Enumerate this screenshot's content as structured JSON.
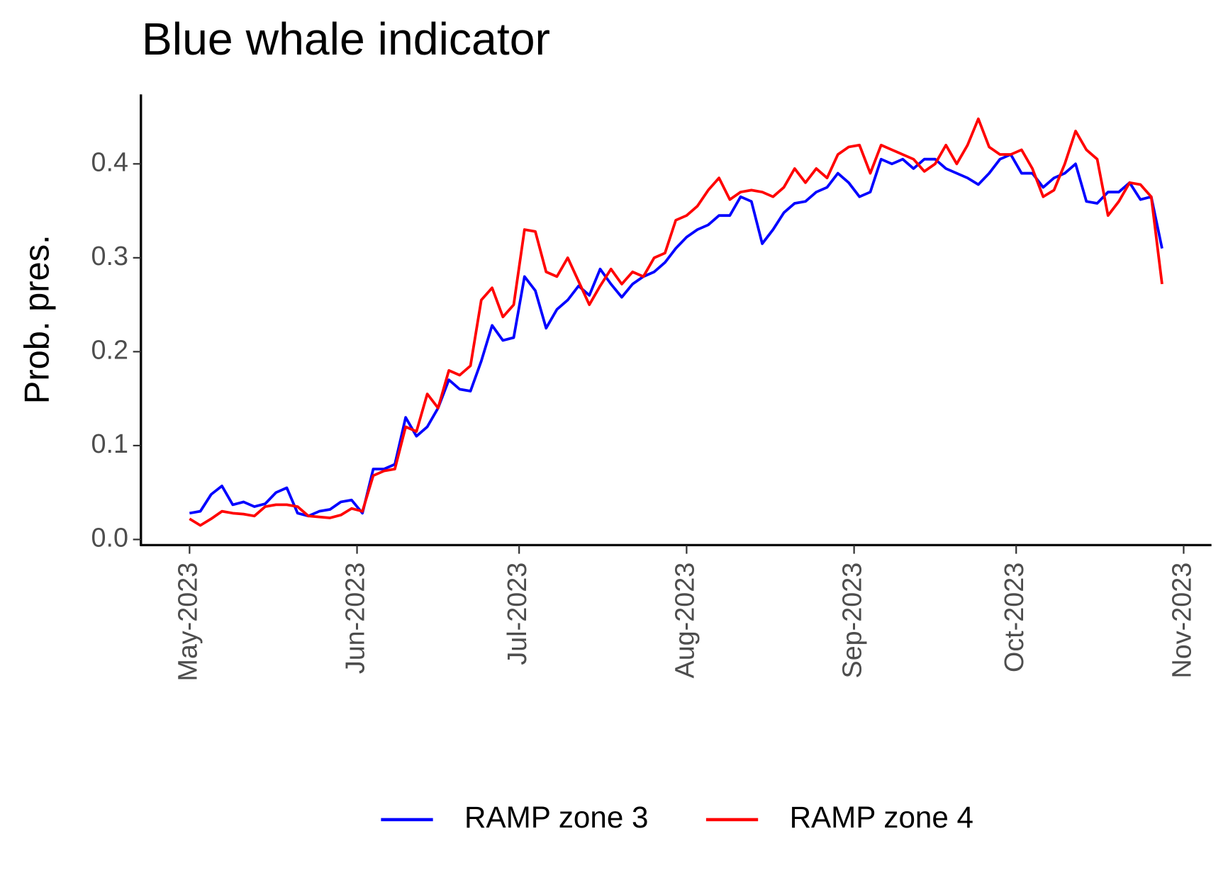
{
  "chart_data": {
    "type": "line",
    "title": "Blue whale indicator",
    "y_label": "Prob. pres.",
    "x": [
      0,
      2,
      4,
      6,
      8,
      10,
      12,
      14,
      16,
      18,
      20,
      22,
      24,
      26,
      28,
      30,
      32,
      34,
      36,
      38,
      40,
      42,
      44,
      46,
      48,
      50,
      52,
      54,
      56,
      58,
      60,
      62,
      64,
      66,
      68,
      70,
      72,
      74,
      76,
      78,
      80,
      82,
      84,
      86,
      88,
      90,
      92,
      94,
      96,
      98,
      100,
      102,
      104,
      106,
      108,
      110,
      112,
      114,
      116,
      118,
      120,
      122,
      124,
      126,
      128,
      130,
      132,
      134,
      136,
      138,
      140,
      142,
      144,
      146,
      148,
      150,
      152,
      154,
      156,
      158,
      160,
      162,
      164,
      166,
      168,
      170,
      172,
      174,
      176,
      178,
      180
    ],
    "xlim": [
      -9,
      189
    ],
    "xticks": [
      {
        "value": 0,
        "label": "May-2023"
      },
      {
        "value": 31,
        "label": "Jun-2023"
      },
      {
        "value": 61,
        "label": "Jul-2023"
      },
      {
        "value": 92,
        "label": "Aug-2023"
      },
      {
        "value": 123,
        "label": "Sep-2023"
      },
      {
        "value": 153,
        "label": "Oct-2023"
      },
      {
        "value": 184,
        "label": "Nov-2023"
      }
    ],
    "ylim": [
      -0.006,
      0.474
    ],
    "yticks": [
      {
        "value": 0,
        "label": "0.0"
      },
      0.1,
      0.2,
      0.3,
      0.4
    ],
    "grid": false,
    "legend": "bottom",
    "series": [
      {
        "name": "RAMP zone 3",
        "color": "#0000ff",
        "values": [
          0.028,
          0.03,
          0.048,
          0.057,
          0.037,
          0.04,
          0.035,
          0.038,
          0.05,
          0.055,
          0.028,
          0.025,
          0.03,
          0.032,
          0.04,
          0.042,
          0.028,
          0.075,
          0.075,
          0.08,
          0.13,
          0.11,
          0.12,
          0.14,
          0.17,
          0.16,
          0.158,
          0.19,
          0.228,
          0.212,
          0.215,
          0.28,
          0.265,
          0.225,
          0.245,
          0.255,
          0.27,
          0.26,
          0.288,
          0.272,
          0.258,
          0.272,
          0.28,
          0.285,
          0.295,
          0.31,
          0.322,
          0.33,
          0.335,
          0.345,
          0.345,
          0.365,
          0.36,
          0.315,
          0.33,
          0.348,
          0.358,
          0.36,
          0.37,
          0.375,
          0.39,
          0.38,
          0.365,
          0.37,
          0.405,
          0.4,
          0.405,
          0.395,
          0.405,
          0.405,
          0.395,
          0.39,
          0.385,
          0.378,
          0.39,
          0.405,
          0.41,
          0.39,
          0.39,
          0.375,
          0.385,
          0.39,
          0.4,
          0.36,
          0.358,
          0.37,
          0.37,
          0.38,
          0.362,
          0.365,
          0.31
        ]
      },
      {
        "name": "RAMP zone 4",
        "color": "#ff0000",
        "values": [
          0.022,
          0.015,
          0.022,
          0.03,
          0.028,
          0.027,
          0.025,
          0.035,
          0.037,
          0.037,
          0.035,
          0.025,
          0.024,
          0.023,
          0.026,
          0.033,
          0.03,
          0.068,
          0.073,
          0.075,
          0.12,
          0.115,
          0.155,
          0.14,
          0.18,
          0.175,
          0.185,
          0.255,
          0.268,
          0.237,
          0.25,
          0.33,
          0.328,
          0.285,
          0.28,
          0.3,
          0.275,
          0.25,
          0.27,
          0.288,
          0.272,
          0.285,
          0.28,
          0.3,
          0.305,
          0.34,
          0.345,
          0.355,
          0.372,
          0.385,
          0.362,
          0.37,
          0.372,
          0.37,
          0.365,
          0.375,
          0.395,
          0.38,
          0.395,
          0.385,
          0.41,
          0.418,
          0.42,
          0.39,
          0.42,
          0.415,
          0.41,
          0.405,
          0.392,
          0.4,
          0.42,
          0.4,
          0.42,
          0.448,
          0.418,
          0.41,
          0.41,
          0.415,
          0.395,
          0.365,
          0.372,
          0.4,
          0.435,
          0.415,
          0.405,
          0.345,
          0.36,
          0.38,
          0.378,
          0.365,
          0.272
        ]
      }
    ]
  }
}
